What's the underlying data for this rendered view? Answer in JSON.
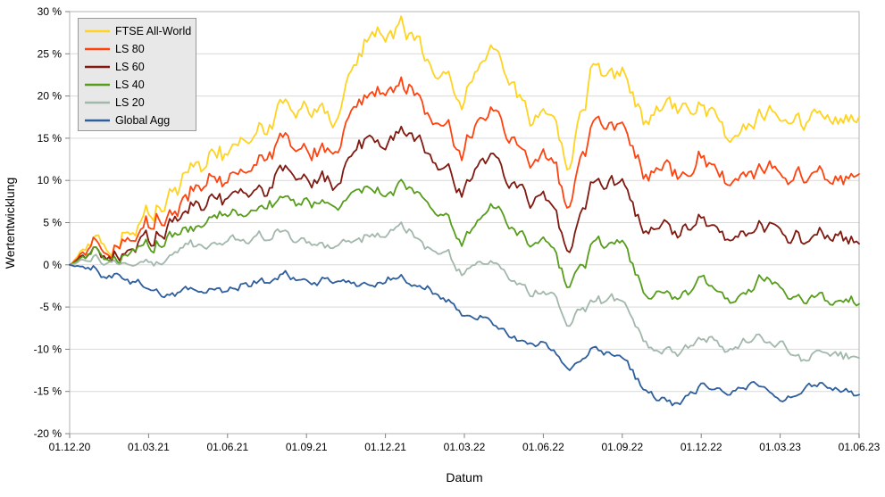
{
  "chart_data": {
    "type": "line",
    "title": "",
    "xlabel": "Datum",
    "ylabel": "Wertentwicklung",
    "ylim": [
      -20,
      30
    ],
    "grid": "horizontal",
    "legend_position": "top-left",
    "y_ticks": [
      30,
      25,
      20,
      15,
      10,
      5,
      0,
      -5,
      -10,
      -15,
      -20
    ],
    "y_tick_suffix": " %",
    "x_tick_labels": [
      "01.12.20",
      "01.03.21",
      "01.06.21",
      "01.09.21",
      "01.12.21",
      "01.03.22",
      "01.06.22",
      "01.09.22",
      "01.12.22",
      "01.03.23",
      "01.06.23"
    ],
    "x_monthly": [
      "2020-12",
      "2021-01",
      "2021-02",
      "2021-03",
      "2021-04",
      "2021-05",
      "2021-06",
      "2021-07",
      "2021-08",
      "2021-09",
      "2021-10",
      "2021-11",
      "2021-12",
      "2022-01",
      "2022-02",
      "2022-03",
      "2022-04",
      "2022-05",
      "2022-06",
      "2022-07",
      "2022-08",
      "2022-09",
      "2022-10",
      "2022-11",
      "2022-12",
      "2023-01",
      "2023-02",
      "2023-03",
      "2023-04",
      "2023-05",
      "2023-06"
    ],
    "series": [
      {
        "name": "FTSE All-World",
        "color": "#ffd320",
        "values": [
          0,
          2.5,
          5.5,
          6,
          11,
          12.5,
          13,
          15.5,
          18.5,
          20.5,
          17,
          26,
          29,
          26.5,
          20.5,
          20,
          24.5,
          18,
          17.5,
          11,
          24,
          21,
          14.5,
          17,
          20.5,
          13.5,
          17.5,
          18.5,
          17,
          16.5,
          19.5
        ]
      },
      {
        "name": "LS 80",
        "color": "#ff420e",
        "values": [
          0,
          2,
          4,
          4.5,
          8.5,
          9.5,
          10,
          12,
          14,
          15.5,
          13,
          20,
          22,
          20,
          15,
          14,
          18,
          12.5,
          12.5,
          7,
          17.5,
          15,
          8.5,
          10,
          13.5,
          8.5,
          11,
          12.5,
          10.5,
          10,
          12
        ]
      },
      {
        "name": "LS 60",
        "color": "#801910",
        "values": [
          0,
          1.5,
          3,
          3,
          6.5,
          7,
          7.5,
          9,
          10.5,
          12,
          9.5,
          14.5,
          16,
          14.5,
          10.5,
          9,
          12.5,
          7.5,
          8,
          1.5,
          10,
          8.5,
          2,
          3,
          6,
          1.5,
          4.5,
          5,
          3,
          3,
          4
        ]
      },
      {
        "name": "LS 40",
        "color": "#579d1c",
        "values": [
          0,
          1,
          2,
          2,
          4.5,
          5,
          5.5,
          6.5,
          7.5,
          8.5,
          6.5,
          9,
          9.5,
          9,
          5.5,
          3.5,
          6.5,
          2.5,
          3,
          -3,
          2.5,
          1.5,
          -5,
          -4.5,
          -1.5,
          -5,
          -2.5,
          -2,
          -4.5,
          -4.5,
          -3.5
        ]
      },
      {
        "name": "LS 20",
        "color": "#a2b8ab",
        "values": [
          0,
          0.5,
          1,
          0.5,
          2,
          2.5,
          2.5,
          3,
          3.5,
          3.5,
          2,
          3.5,
          4,
          3.5,
          1,
          -1,
          0.5,
          -3,
          -3,
          -7.5,
          -4,
          -5,
          -10.5,
          -11,
          -8,
          -10.5,
          -8.5,
          -8.5,
          -11,
          -10.5,
          -10.5
        ]
      },
      {
        "name": "Global Agg",
        "color": "#2e5e9c",
        "values": [
          0,
          -0.5,
          -1.5,
          -3,
          -3,
          -2.5,
          -2.5,
          -2,
          -1.5,
          -1,
          -2,
          -2,
          -1.5,
          -2,
          -3.5,
          -5.5,
          -6.5,
          -9,
          -9.5,
          -12.5,
          -10,
          -11,
          -16,
          -17,
          -14,
          -15.5,
          -14,
          -15,
          -14.5,
          -15,
          -15
        ]
      }
    ]
  },
  "colors": {
    "grid": "#d9d9d9",
    "plot_border": "#b3b3b3",
    "tick": "#808080",
    "legend_bg": "#e8e8e8",
    "legend_border": "#999999"
  }
}
